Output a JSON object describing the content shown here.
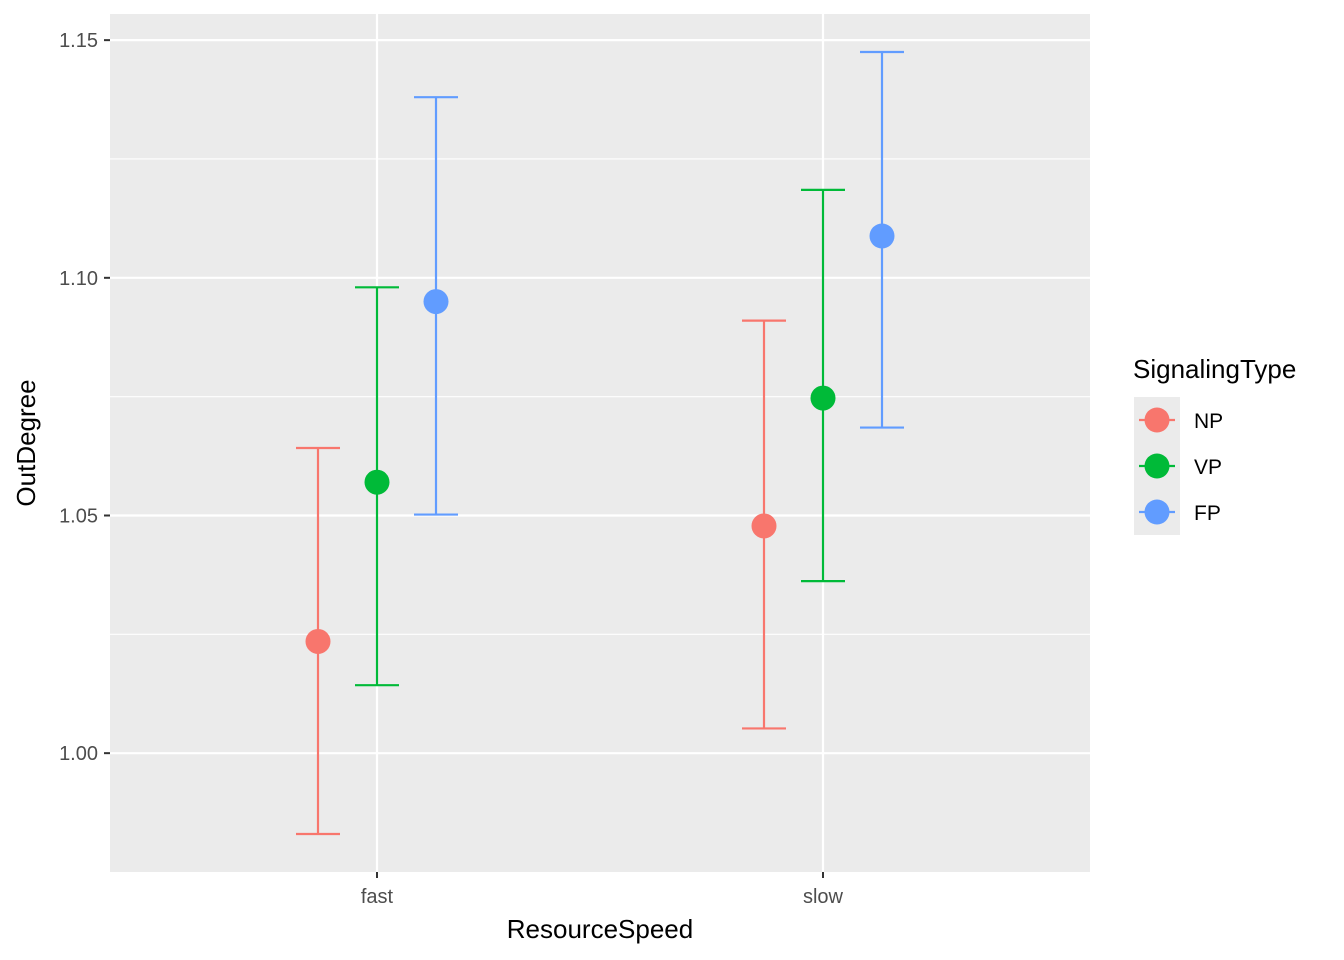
{
  "chart_data": {
    "type": "scatter",
    "subtype": "point-with-errorbars",
    "xlabel": "ResourceSpeed",
    "ylabel": "OutDegree",
    "categories": [
      "fast",
      "slow"
    ],
    "ylim": [
      0.975,
      1.1555
    ],
    "yticks": [
      1.0,
      1.05,
      1.1,
      1.15
    ],
    "ytick_labels": [
      "1.00",
      "1.05",
      "1.10",
      "1.15"
    ],
    "grid": true,
    "legend": {
      "title": "SignalingType",
      "position": "right"
    },
    "series": [
      {
        "name": "NP",
        "color": "#F8766D",
        "values": [
          1.0235,
          1.0478
        ],
        "lower": [
          0.983,
          1.0052
        ],
        "upper": [
          1.0642,
          1.091
        ]
      },
      {
        "name": "VP",
        "color": "#00BA38",
        "values": [
          1.057,
          1.0747
        ],
        "lower": [
          1.0143,
          1.0362
        ],
        "upper": [
          1.098,
          1.1185
        ]
      },
      {
        "name": "FP",
        "color": "#619CFF",
        "values": [
          1.095,
          1.1088
        ],
        "lower": [
          1.0502,
          1.0685
        ],
        "upper": [
          1.138,
          1.1475
        ]
      }
    ]
  }
}
